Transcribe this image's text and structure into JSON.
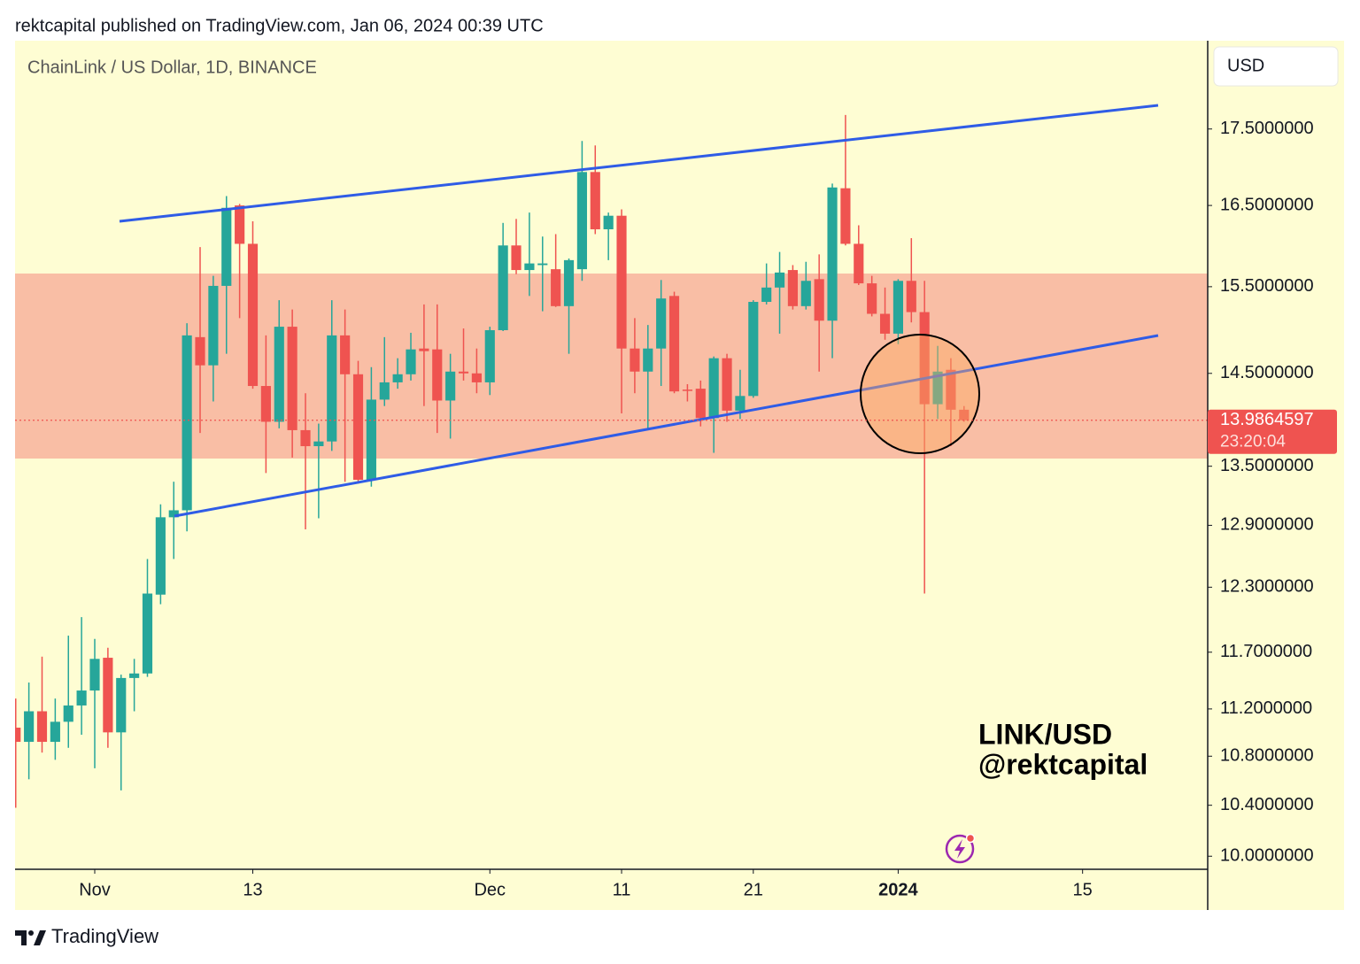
{
  "header": {
    "text": "rektcapital published on TradingView.com, Jan 06, 2024 00:39 UTC"
  },
  "chart_data": {
    "type": "candlestick",
    "title": "ChainLink / US Dollar, 1D, BINANCE",
    "currency": "USD",
    "log_scale": true,
    "up_color": "#26a69a",
    "down_color": "#ef5350",
    "open": [
      11.04,
      10.92,
      11.18,
      10.92,
      11.09,
      11.23,
      11.36,
      11.65,
      11.0,
      11.47,
      11.51,
      12.23,
      12.98,
      13.05,
      14.91,
      14.59,
      15.51,
      16.5,
      16.02,
      14.36,
      13.97,
      15.03,
      13.88,
      13.71,
      13.76,
      14.93,
      14.49,
      13.36,
      14.21,
      14.4,
      14.49,
      14.78,
      14.77,
      14.2,
      14.52,
      14.5,
      14.4,
      14.99,
      16.0,
      15.7,
      15.76,
      15.71,
      15.27,
      15.71,
      16.93,
      16.2,
      16.37,
      14.78,
      14.52,
      14.78,
      15.39,
      14.32,
      14.33,
      14.01,
      14.67,
      14.09,
      14.25,
      15.32,
      15.49,
      15.7,
      15.27,
      15.59,
      15.1,
      16.72,
      16.02,
      15.54,
      15.18,
      14.95,
      15.57,
      15.2,
      14.16,
      14.54,
      14.1
    ],
    "high": [
      11.29,
      11.43,
      11.66,
      11.29,
      11.85,
      12.02,
      11.82,
      11.74,
      11.5,
      11.64,
      12.57,
      13.11,
      13.34,
      15.07,
      15.98,
      15.63,
      16.62,
      16.52,
      16.3,
      14.93,
      15.34,
      15.23,
      14.28,
      13.95,
      15.34,
      15.23,
      14.64,
      14.57,
      14.91,
      14.67,
      14.96,
      15.29,
      15.29,
      14.72,
      15.01,
      14.78,
      15.03,
      16.28,
      16.33,
      16.41,
      16.11,
      16.14,
      15.84,
      17.34,
      17.28,
      16.41,
      16.45,
      15.13,
      15.05,
      15.58,
      15.44,
      14.38,
      14.42,
      14.69,
      14.72,
      14.54,
      15.34,
      15.78,
      15.92,
      15.76,
      15.8,
      15.89,
      16.78,
      17.69,
      16.25,
      15.63,
      15.49,
      15.59,
      16.09,
      15.57,
      14.81,
      14.67,
      14.14
    ],
    "low": [
      10.38,
      10.61,
      10.83,
      10.77,
      10.87,
      10.98,
      10.7,
      10.87,
      10.52,
      11.18,
      11.48,
      12.14,
      12.57,
      12.84,
      13.85,
      14.19,
      14.72,
      15.13,
      14.33,
      13.43,
      13.9,
      13.59,
      12.86,
      12.97,
      13.66,
      13.34,
      13.32,
      13.29,
      14.14,
      14.33,
      14.42,
      14.14,
      13.85,
      13.79,
      14.42,
      14.28,
      14.26,
      14.98,
      15.65,
      15.39,
      15.21,
      15.26,
      14.72,
      15.57,
      16.14,
      15.82,
      14.06,
      14.28,
      13.9,
      14.36,
      14.28,
      14.19,
      13.92,
      13.64,
      13.97,
      14.0,
      14.23,
      15.29,
      14.95,
      15.23,
      15.23,
      14.52,
      14.67,
      16.0,
      15.52,
      15.15,
      14.88,
      14.83,
      15.08,
      12.24,
      14.0,
      13.71,
      13.97
    ],
    "close": [
      10.92,
      11.18,
      10.92,
      11.09,
      11.23,
      11.36,
      11.64,
      11.0,
      11.47,
      11.51,
      12.24,
      12.98,
      13.05,
      14.93,
      14.59,
      15.51,
      16.47,
      16.02,
      14.36,
      13.97,
      15.03,
      13.88,
      13.71,
      13.76,
      14.93,
      14.49,
      13.36,
      14.21,
      14.4,
      14.49,
      14.77,
      14.75,
      14.2,
      14.52,
      14.5,
      14.4,
      14.99,
      16.0,
      15.7,
      15.78,
      15.78,
      15.27,
      15.82,
      16.93,
      16.2,
      16.37,
      14.78,
      14.52,
      14.78,
      15.36,
      14.3,
      14.31,
      14.01,
      14.67,
      14.09,
      14.25,
      15.32,
      15.49,
      15.67,
      15.27,
      15.57,
      15.1,
      16.73,
      16.02,
      15.54,
      15.18,
      14.95,
      15.57,
      15.2,
      14.16,
      14.52,
      14.1,
      13.9864597
    ],
    "xlim": [
      -0.05,
      90.5
    ],
    "xticks": [
      {
        "value": 6,
        "label": "Nov"
      },
      {
        "value": 18,
        "label": "13"
      },
      {
        "value": 36,
        "label": "Dec"
      },
      {
        "value": 46,
        "label": "11"
      },
      {
        "value": 56,
        "label": "21"
      },
      {
        "value": 67,
        "label": "2024"
      },
      {
        "value": 81,
        "label": "15"
      }
    ],
    "ylim": [
      9.9,
      18.73
    ],
    "yticks": [
      {
        "value": 17.5,
        "label": "17.5000000"
      },
      {
        "value": 16.5,
        "label": "16.5000000"
      },
      {
        "value": 15.5,
        "label": "15.5000000"
      },
      {
        "value": 14.5,
        "label": "14.5000000"
      },
      {
        "value": 13.5,
        "label": "13.5000000"
      },
      {
        "value": 12.9,
        "label": "12.9000000"
      },
      {
        "value": 12.3,
        "label": "12.3000000"
      },
      {
        "value": 11.7,
        "label": "11.7000000"
      },
      {
        "value": 11.2,
        "label": "11.2000000"
      },
      {
        "value": 10.8,
        "label": "10.8000000"
      },
      {
        "value": 10.4,
        "label": "10.4000000"
      },
      {
        "value": 10,
        "label": "10.0000000"
      }
    ],
    "last_price": 13.9864597,
    "countdown": "23:20:04",
    "annotations": [
      "LINK/USD",
      "@rektcapital"
    ]
  },
  "footer": {
    "brand": "TradingView"
  }
}
